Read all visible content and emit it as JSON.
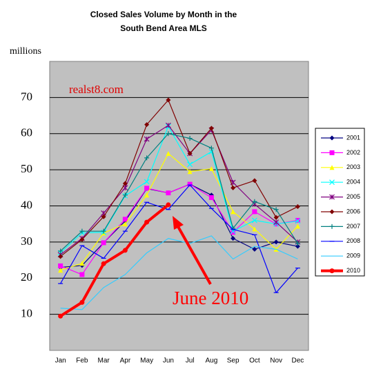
{
  "chart_data": {
    "type": "line",
    "title": [
      "Closed Sales Volume by Month in the",
      "South Bend Area MLS"
    ],
    "y_label": "millions",
    "annotations": [
      "realst8.com",
      "June 2010"
    ],
    "categories": [
      "Jan",
      "Feb",
      "Mar",
      "Apr",
      "May",
      "Jun",
      "Jul",
      "Aug",
      "Sep",
      "Oct",
      "Nov",
      "Dec"
    ],
    "ylim": [
      0,
      80
    ],
    "yticks": [
      10,
      20,
      30,
      40,
      50,
      60,
      70
    ],
    "grid": true,
    "legend": "right",
    "series": [
      {
        "name": "2001",
        "color": "#000080",
        "marker": "diamond",
        "values": [
          23,
          23.5,
          29.8,
          35.8,
          44.8,
          43.6,
          46,
          43,
          31,
          28,
          30,
          28.8
        ]
      },
      {
        "name": "2002",
        "color": "#ff00ff",
        "marker": "square",
        "values": [
          23.4,
          21,
          29.8,
          36.3,
          44.9,
          43.6,
          46,
          42.3,
          32.7,
          38.4,
          35,
          36
        ]
      },
      {
        "name": "2003",
        "color": "#ffff00",
        "marker": "triangle",
        "values": [
          22.2,
          24.1,
          32.5,
          35,
          43,
          54.5,
          49.5,
          50.3,
          38.4,
          33.6,
          28,
          34.4
        ]
      },
      {
        "name": "2004",
        "color": "#00ffff",
        "marker": "x",
        "values": [
          27,
          32.5,
          32.7,
          42.8,
          46.7,
          62,
          51.5,
          55,
          33,
          36,
          35,
          35.8
        ]
      },
      {
        "name": "2005",
        "color": "#800080",
        "marker": "star",
        "values": [
          26.5,
          31,
          38,
          45,
          58.5,
          62.3,
          54.5,
          61,
          46.5,
          40.5,
          35.5,
          30
        ]
      },
      {
        "name": "2006",
        "color": "#800000",
        "marker": "diamond",
        "values": [
          26,
          30.7,
          37,
          46.2,
          62.5,
          69.3,
          54.5,
          61.5,
          45,
          47,
          36.8,
          39.8
        ]
      },
      {
        "name": "2007",
        "color": "#008080",
        "marker": "plus",
        "values": [
          27.5,
          33,
          33,
          43,
          53.3,
          60,
          58.7,
          56,
          33.8,
          41.2,
          39,
          29.6
        ]
      },
      {
        "name": "2008",
        "color": "#0000ff",
        "marker": "dash",
        "values": [
          18.5,
          29,
          25.5,
          33,
          41,
          39,
          45.8,
          39.3,
          33.5,
          32,
          16,
          22.8
        ]
      },
      {
        "name": "2009",
        "color": "#33ccff",
        "marker": "none",
        "values": [
          11.7,
          11.3,
          17.4,
          21,
          27,
          31,
          29.6,
          31.7,
          25.3,
          28.8,
          28,
          25.3
        ]
      },
      {
        "name": "2010",
        "color": "#ff0000",
        "marker": "circle",
        "width": 4,
        "values": [
          9.5,
          13.3,
          24,
          27.7,
          35.5,
          40.3,
          null,
          null,
          null,
          null,
          null,
          null
        ]
      }
    ]
  }
}
